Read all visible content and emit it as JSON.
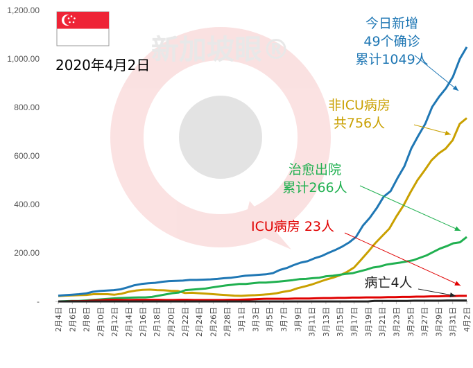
{
  "chart_data": {
    "type": "line",
    "date_label": "2020年4月2日",
    "watermark": "新加坡眼®",
    "y_ticks": [
      "-",
      "200.00",
      "400.00",
      "600.00",
      "800.00",
      "1,000.00",
      "1,200.00"
    ],
    "ylim": [
      0,
      1200
    ],
    "x_labels": [
      "2月4日",
      "2月6日",
      "2月8日",
      "2月10日",
      "2月12日",
      "2月14日",
      "2月16日",
      "2月18日",
      "2月20日",
      "2月22日",
      "2月24日",
      "2月26日",
      "2月28日",
      "3月1日",
      "3月3日",
      "3月5日",
      "3月7日",
      "3月9日",
      "3月11日",
      "3月13日",
      "3月15日",
      "3月17日",
      "3月19日",
      "3月21日",
      "3月23日",
      "3月25日",
      "3月27日",
      "3月29日",
      "3月31日",
      "4月2日"
    ],
    "series": [
      {
        "name": "累计确诊",
        "color": "#1f77b4",
        "label_lines": [
          "今日新增",
          "49个确诊",
          "累计1049人"
        ],
        "values": [
          24,
          26,
          28,
          30,
          33,
          40,
          43,
          45,
          47,
          50,
          58,
          67,
          72,
          75,
          77,
          81,
          84,
          85,
          86,
          89,
          89,
          90,
          91,
          93,
          96,
          98,
          102,
          106,
          108,
          110,
          112,
          117,
          130,
          138,
          150,
          160,
          166,
          178,
          187,
          200,
          212,
          226,
          243,
          266,
          313,
          345,
          385,
          432,
          455,
          509,
          558,
          631,
          683,
          732,
          802,
          844,
          879,
          926,
          1000,
          1049
        ]
      },
      {
        "name": "非ICU病房",
        "color": "#c9a000",
        "label_lines": [
          "非ICU病房",
          "共756人"
        ],
        "values": [
          22,
          24,
          25,
          26,
          27,
          30,
          30,
          30,
          28,
          32,
          40,
          45,
          48,
          49,
          47,
          46,
          44,
          43,
          35,
          36,
          34,
          32,
          30,
          28,
          26,
          24,
          23,
          25,
          26,
          28,
          30,
          34,
          40,
          45,
          55,
          62,
          70,
          80,
          90,
          98,
          108,
          122,
          140,
          172,
          205,
          240,
          270,
          300,
          350,
          395,
          450,
          500,
          540,
          582,
          610,
          630,
          665,
          732,
          756
        ]
      },
      {
        "name": "治愈出院",
        "color": "#20b050",
        "label_lines": [
          "治愈出院",
          "累计266人"
        ],
        "values": [
          0,
          1,
          2,
          2,
          4,
          6,
          8,
          10,
          12,
          14,
          15,
          16,
          17,
          17,
          19,
          24,
          29,
          34,
          37,
          47,
          49,
          51,
          53,
          58,
          62,
          66,
          69,
          72,
          72,
          75,
          78,
          78,
          80,
          82,
          85,
          88,
          92,
          93,
          96,
          98,
          104,
          106,
          110,
          114,
          117,
          124,
          131,
          140,
          144,
          152,
          156,
          160,
          165,
          170,
          180,
          190,
          204,
          218,
          228,
          240,
          244,
          266
        ]
      },
      {
        "name": "ICU病房",
        "color": "#e00000",
        "label_lines": [
          "ICU病房 23人"
        ],
        "values": [
          0,
          0,
          1,
          1,
          2,
          4,
          5,
          7,
          7,
          6,
          6,
          7,
          7,
          7,
          7,
          6,
          6,
          7,
          7,
          6,
          6,
          6,
          6,
          6,
          7,
          7,
          8,
          9,
          10,
          11,
          11,
          11,
          11,
          12,
          12,
          12,
          13,
          14,
          14,
          15,
          15,
          16,
          16,
          17,
          17,
          17,
          18,
          18,
          19,
          19,
          20,
          20,
          21,
          21,
          22,
          22,
          23,
          23
        ]
      },
      {
        "name": "病亡",
        "color": "#222222",
        "label_lines": [
          "病亡4人"
        ],
        "values": [
          0,
          0,
          0,
          0,
          0,
          0,
          0,
          0,
          0,
          0,
          0,
          0,
          0,
          0,
          0,
          0,
          0,
          0,
          0,
          0,
          0,
          0,
          0,
          0,
          0,
          0,
          0,
          0,
          0,
          0,
          0,
          0,
          0,
          0,
          0,
          0,
          0,
          0,
          0,
          0,
          0,
          0,
          0,
          0,
          0,
          0,
          0,
          0,
          2,
          2,
          2,
          2,
          2,
          2,
          3,
          3,
          3,
          3,
          3,
          4,
          4,
          4,
          4
        ]
      }
    ]
  }
}
